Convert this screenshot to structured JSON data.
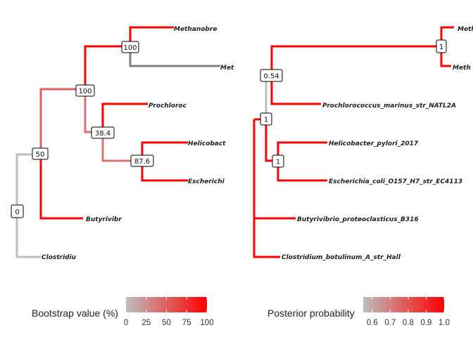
{
  "colors": {
    "low": "#BEBEBE",
    "high": "#FF0000"
  },
  "trees": [
    {
      "name": "bootstrap-tree",
      "tips": {
        "methanobre": "Methanobre",
        "met": "Met",
        "prochloroc": "Prochloroc",
        "helicobact": "Helicobact",
        "escherichi": "Escherichi",
        "butyrivibr": "Butyrivibr",
        "clostridiu": "Clostridiu"
      },
      "node_labels": {
        "methanogen_clade": "100",
        "proteo_cyano_methano_clade": "100",
        "cyano_proteo_clade": "38.4",
        "proteo_clade": "87.6",
        "butyrivibrio_clade": "50",
        "root": "0"
      },
      "node_values": {
        "methanogen_clade": 100,
        "proteo_cyano_methano_clade": 100,
        "cyano_proteo_clade": 38.4,
        "proteo_clade": 87.6,
        "butyrivibrio_clade": 50,
        "root": 0
      },
      "legend": {
        "title": "Bootstrap value (%)",
        "min": 0,
        "max": 100,
        "ticks": [
          "0",
          "25",
          "50",
          "75",
          "100"
        ]
      }
    },
    {
      "name": "posterior-tree",
      "tips": {
        "methanobre": "Meth",
        "met": "Meth",
        "prochloroc": "Prochlorococcus_marinus_str_NATL2A",
        "helicobact": "Helicobacter_pylori_2017",
        "escherichi": "Escherichia_coli_O157_H7_str_EC4113",
        "butyrivibr": "Butyrivibrio_proteoclasticus_B316",
        "clostridiu": "Clostridium_botulinum_A_str_Hall"
      },
      "node_labels": {
        "methanogen_clade": "1",
        "proteo_cyano_methano_clade": "0.54",
        "cyano_proteo_clade": "1",
        "proteo_clade": "1"
      },
      "node_values": {
        "methanogen_clade": 1.0,
        "proteo_cyano_methano_clade": 0.54,
        "cyano_proteo_clade": 1.0,
        "proteo_clade": 1.0
      },
      "legend": {
        "title": "Posterior probability",
        "min": 0.55,
        "max": 1.0,
        "ticks": [
          "0.6",
          "0.7",
          "0.8",
          "0.9",
          "1.0"
        ]
      }
    }
  ]
}
